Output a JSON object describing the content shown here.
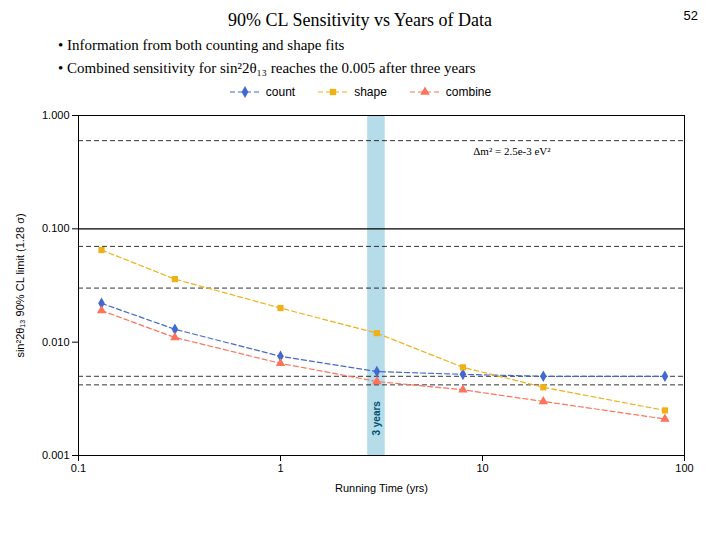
{
  "chart_data": {
    "type": "line",
    "title": "90% CL Sensitivity vs Years of Data",
    "slide_number": "52",
    "bullets": [
      "• Information from both counting and shape fits",
      "• Combined sensitivity for sin²2θ₁₃ reaches the 0.005 after three years"
    ],
    "xlabel": "Running Time (yrs)",
    "ylabel": "sin²2θ₁₃ 90% CL limit (1.28 σ)",
    "log": true,
    "xlim": [
      0.1,
      100
    ],
    "ylim": [
      0.001,
      1.0
    ],
    "xticks": [
      0.1,
      1,
      10,
      100
    ],
    "yticks": [
      0.001,
      {
        "value": 0.01,
        "label": "0.010"
      },
      {
        "value": 0.1,
        "label": "0.100"
      },
      {
        "value": 1.0,
        "label": "1.000"
      }
    ],
    "grid": false,
    "legend": "top",
    "x": [
      0.13,
      0.3,
      1.0,
      3.0,
      8.0,
      20.0,
      80.0
    ],
    "series": [
      {
        "name": "count",
        "values": [
          0.022,
          0.013,
          0.0075,
          0.0055,
          0.0052,
          0.005,
          0.005
        ],
        "marker": "diamond",
        "line_style": "dashed"
      },
      {
        "name": "shape",
        "values": [
          0.065,
          0.036,
          0.02,
          0.012,
          0.006,
          0.004,
          0.0025
        ],
        "marker": "square",
        "line_style": "dashed"
      },
      {
        "name": "combine",
        "values": [
          0.019,
          0.011,
          0.0065,
          0.0045,
          0.0038,
          0.003,
          0.0021
        ],
        "marker": "triangle",
        "line_style": "dashed"
      }
    ],
    "reference_lines": [
      {
        "y": 0.1,
        "line_style": "solid"
      },
      {
        "y": 0.07,
        "line_style": "dashed"
      },
      {
        "y": 0.03,
        "line_style": "dashed"
      },
      {
        "y": 0.005,
        "line_style": "dashed"
      },
      {
        "y": 0.0042,
        "line_style": "dashed"
      },
      {
        "y": 0.6,
        "line_style": "dashed"
      }
    ],
    "bands": [
      {
        "x1": 2.7,
        "x2": 3.3,
        "color": "#add8e6"
      }
    ],
    "annotations": [
      {
        "text": "3 years",
        "x": 3.0,
        "y": 0.0015
      },
      {
        "text": "Δm² = 2.5e-3 eV²",
        "x": 9,
        "y": 0.48
      }
    ]
  }
}
